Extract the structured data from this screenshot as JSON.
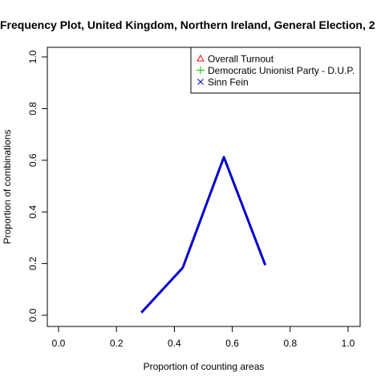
{
  "chart_data": {
    "type": "line",
    "title": "Frequency Plot, United Kingdom, Northern Ireland, General Election, 2",
    "xlabel": "Proportion of counting areas",
    "ylabel": "Proportion of combinations",
    "xlim": [
      0,
      1
    ],
    "ylim": [
      0,
      1
    ],
    "x_ticks": [
      "0.0",
      "0.2",
      "0.4",
      "0.6",
      "0.8",
      "1.0"
    ],
    "y_ticks": [
      "0.0",
      "0.2",
      "0.4",
      "0.6",
      "0.8",
      "1.0"
    ],
    "grid": false,
    "legend_position": "top-right",
    "series": [
      {
        "name": "Overall Turnout",
        "color": "#ff0000",
        "marker": "triangle",
        "x": [],
        "y": []
      },
      {
        "name": "Democratic Unionist Party - D.U.P.",
        "color": "#00cc00",
        "marker": "plus",
        "x": [],
        "y": []
      },
      {
        "name": "Sinn Fein",
        "color": "#0000cc",
        "marker": "cross",
        "x": [
          0.286,
          0.429,
          0.571,
          0.714
        ],
        "y": [
          0.01,
          0.184,
          0.612,
          0.194
        ]
      }
    ]
  }
}
